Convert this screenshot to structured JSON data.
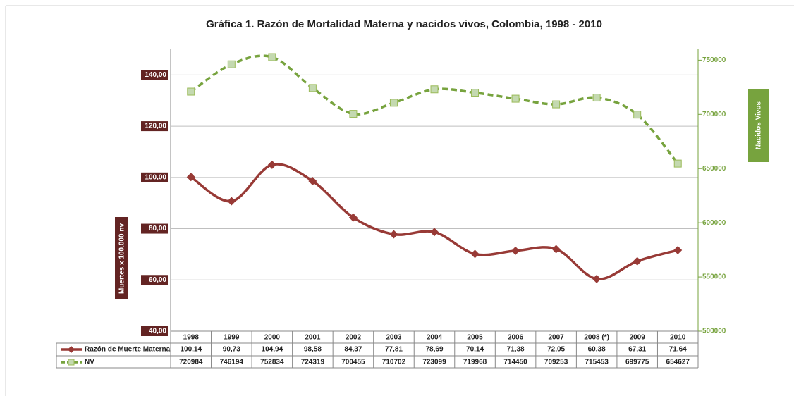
{
  "chart_data": {
    "type": "line",
    "title": "Gráfica 1. Razón de Mortalidad Materna y nacidos vivos, Colombia,  1998 - 2010",
    "ylabel": "Muertes x 100.000 nv",
    "y2label": "Nacidos Vivos",
    "categories": [
      "1998",
      "1999",
      "2000",
      "2001",
      "2002",
      "2003",
      "2004",
      "2005",
      "2006",
      "2007",
      "2008 (*)",
      "2009",
      "2010"
    ],
    "series": [
      {
        "name": "Razón de Muerte Materna",
        "color": "#983a36",
        "values": [
          100.14,
          90.73,
          104.94,
          98.58,
          84.37,
          77.81,
          78.69,
          70.14,
          71.38,
          72.05,
          60.38,
          67.31,
          71.64
        ],
        "value_labels": [
          "100,14",
          "90,73",
          "104,94",
          "98,58",
          "84,37",
          "77,81",
          "78,69",
          "70,14",
          "71,38",
          "72,05",
          "60,38",
          "67,31",
          "71,64"
        ]
      },
      {
        "name": "NV",
        "color": "#77a33e",
        "axis": "y2",
        "values": [
          720984,
          746194,
          752834,
          724319,
          700455,
          710702,
          723099,
          719968,
          714450,
          709253,
          715453,
          699775,
          654627
        ]
      }
    ],
    "ylim": [
      40,
      150
    ],
    "yticks": [
      {
        "value": 40,
        "label": "40,00"
      },
      {
        "value": 60,
        "label": "60,00"
      },
      {
        "value": 80,
        "label": "80,00"
      },
      {
        "value": 100,
        "label": "100,00"
      },
      {
        "value": 120,
        "label": "120,00"
      },
      {
        "value": 140,
        "label": "140,00"
      }
    ],
    "y2lim": [
      500000,
      760000
    ],
    "y2ticks": [
      500000,
      550000,
      600000,
      650000,
      700000,
      750000
    ],
    "grid": true
  }
}
